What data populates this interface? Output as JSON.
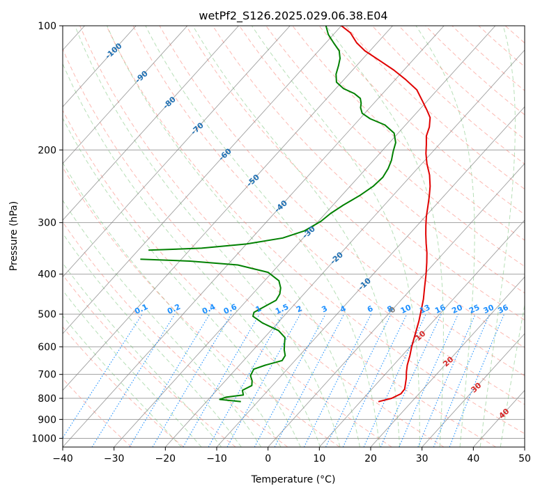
{
  "chart_data": {
    "type": "line",
    "subtype": "skew-t log-p",
    "title": "wetPf2_S126.2025.029.06.38.E04",
    "xlabel": "Temperature (°C)",
    "ylabel": "Pressure (hPa)",
    "xlim": [
      -40,
      50
    ],
    "ylim": [
      1050,
      100
    ],
    "y_scale": "log",
    "grid": true,
    "x_ticks": [
      -40,
      -30,
      -20,
      -10,
      0,
      10,
      20,
      30,
      40,
      50
    ],
    "x_tick_labels": [
      "−40",
      "−30",
      "−20",
      "−10",
      "0",
      "10",
      "20",
      "30",
      "40",
      "50"
    ],
    "y_ticks": [
      100,
      200,
      300,
      400,
      500,
      600,
      700,
      800,
      900,
      1000
    ],
    "y_tick_labels": [
      "100",
      "200",
      "300",
      "400",
      "500",
      "600",
      "700",
      "800",
      "900",
      "1000"
    ],
    "series": [
      {
        "name": "",
        "role": "temperature",
        "color": "#e00000",
        "points": [
          [
            13.5,
            815
          ],
          [
            15.5,
            800
          ],
          [
            16.5,
            780
          ],
          [
            16.4,
            760
          ],
          [
            15.7,
            740
          ],
          [
            14.8,
            715
          ],
          [
            13.7,
            690
          ],
          [
            12.7,
            665
          ],
          [
            11.5,
            630
          ],
          [
            10.3,
            600
          ],
          [
            8.8,
            560
          ],
          [
            7.2,
            520
          ],
          [
            6.0,
            495
          ],
          [
            4.2,
            460
          ],
          [
            2.3,
            430
          ],
          [
            0.3,
            400
          ],
          [
            -1.6,
            375
          ],
          [
            -3.3,
            355
          ],
          [
            -5.1,
            337
          ],
          [
            -6.8,
            320
          ],
          [
            -8.3,
            305
          ],
          [
            -9.8,
            290
          ],
          [
            -11.3,
            274
          ],
          [
            -12.8,
            259
          ],
          [
            -14.4,
            245
          ],
          [
            -16.5,
            230
          ],
          [
            -19.0,
            216
          ],
          [
            -21.0,
            204
          ],
          [
            -22.5,
            194
          ],
          [
            -24.0,
            185
          ],
          [
            -25.0,
            176
          ],
          [
            -26.5,
            167
          ],
          [
            -28.5,
            160
          ],
          [
            -31.0,
            152
          ],
          [
            -34.0,
            143
          ],
          [
            -38.0,
            135
          ],
          [
            -42.0,
            128
          ],
          [
            -46.0,
            122
          ],
          [
            -51.0,
            115
          ],
          [
            -54.0,
            110
          ],
          [
            -57.0,
            104
          ],
          [
            -60.0,
            100
          ]
        ]
      },
      {
        "name": "",
        "role": "dewpoint",
        "color": "#008000",
        "points": [
          [
            -13.3,
            815
          ],
          [
            -17.8,
            805
          ],
          [
            -17.0,
            795
          ],
          [
            -14.0,
            785
          ],
          [
            -15.0,
            765
          ],
          [
            -14.0,
            745
          ],
          [
            -14.8,
            725
          ],
          [
            -16.0,
            705
          ],
          [
            -16.5,
            680
          ],
          [
            -15.0,
            665
          ],
          [
            -12.5,
            648
          ],
          [
            -12.8,
            630
          ],
          [
            -14.0,
            610
          ],
          [
            -15.0,
            590
          ],
          [
            -16.0,
            570
          ],
          [
            -18.5,
            548
          ],
          [
            -23.0,
            525
          ],
          [
            -26.0,
            506
          ],
          [
            -26.5,
            495
          ],
          [
            -25.5,
            480
          ],
          [
            -24.3,
            463
          ],
          [
            -24.7,
            447
          ],
          [
            -25.6,
            432
          ],
          [
            -27.2,
            415
          ],
          [
            -30.8,
            396
          ],
          [
            -38.0,
            380
          ],
          [
            -48.0,
            372
          ],
          [
            -58.0,
            368
          ]
        ],
        "upper_points": [
          [
            -58.0,
            350
          ],
          [
            -48.0,
            346
          ],
          [
            -40.0,
            338
          ],
          [
            -34.0,
            327
          ],
          [
            -31.0,
            314
          ],
          [
            -29.5,
            298
          ],
          [
            -29.0,
            285
          ],
          [
            -28.0,
            272
          ],
          [
            -26.5,
            258
          ],
          [
            -25.5,
            245
          ],
          [
            -25.2,
            233
          ],
          [
            -25.7,
            222
          ],
          [
            -26.5,
            212
          ],
          [
            -27.7,
            202
          ],
          [
            -28.8,
            192
          ],
          [
            -30.8,
            182
          ],
          [
            -34.0,
            174
          ],
          [
            -38.0,
            168
          ],
          [
            -40.5,
            163
          ],
          [
            -41.8,
            158
          ],
          [
            -42.5,
            154
          ],
          [
            -43.5,
            150
          ],
          [
            -45.5,
            146
          ],
          [
            -48.5,
            142
          ],
          [
            -51.0,
            137
          ],
          [
            -52.5,
            131
          ],
          [
            -53.5,
            125
          ],
          [
            -54.5,
            120
          ],
          [
            -56.0,
            115
          ],
          [
            -58.5,
            110
          ],
          [
            -61.0,
            105
          ],
          [
            -63.0,
            100
          ]
        ]
      }
    ],
    "reference_lines": {
      "isotherm_labels": [
        "-100",
        "-90",
        "-80",
        "-70",
        "-60",
        "-50",
        "-40",
        "-30",
        "-20",
        "-10",
        "0",
        "10",
        "20",
        "30",
        "40"
      ],
      "isotherm_label_values": [
        -100,
        -90,
        -80,
        -70,
        -60,
        -50,
        -40,
        -30,
        -20,
        -10,
        0,
        10,
        20,
        30,
        40
      ],
      "isotherm_label_colors": [
        "#1f6fb2",
        "#1f6fb2",
        "#1f6fb2",
        "#1f6fb2",
        "#1f6fb2",
        "#1f6fb2",
        "#1f6fb2",
        "#1f6fb2",
        "#1f6fb2",
        "#1f6fb2",
        "#7f7f7f",
        "#d62728",
        "#d62728",
        "#d62728",
        "#d62728"
      ],
      "mixing_ratio_labels": [
        "0.1",
        "0.2",
        "0.4",
        "0.6",
        "1",
        "1.5",
        "2",
        "3",
        "4",
        "6",
        "8",
        "10",
        "13",
        "16",
        "20",
        "25",
        "30",
        "36"
      ],
      "mixing_ratio_values": [
        0.1,
        0.2,
        0.4,
        0.6,
        1,
        1.5,
        2,
        3,
        4,
        6,
        8,
        10,
        13,
        16,
        20,
        25,
        30,
        36
      ],
      "mixing_ratio_color": "#1e90ff",
      "dry_adiabat_color": "#fa8072",
      "moist_adiabat_color": "#6fbf6f",
      "isotherm_color": "#808080",
      "isobar_color": "#a0a0a0"
    }
  }
}
